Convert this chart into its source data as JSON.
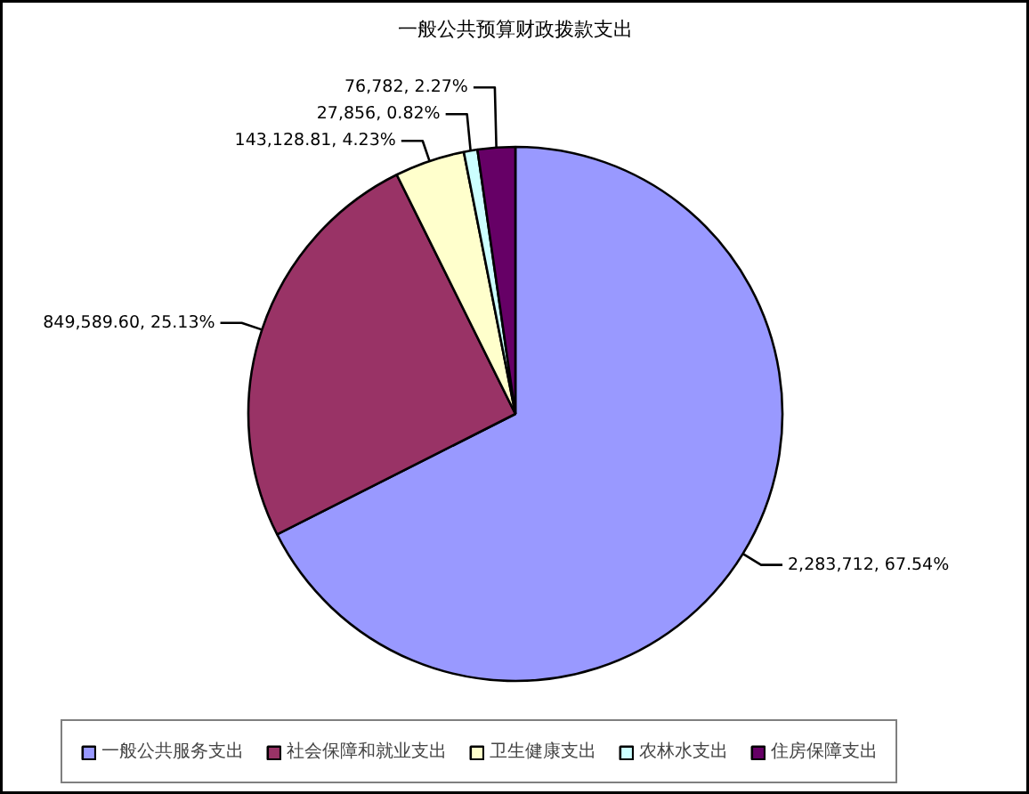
{
  "chart_data": {
    "type": "pie",
    "title": "一般公共预算财政拨款支出",
    "categories": [
      "一般公共服务支出",
      "社会保障和就业支出",
      "卫生健康支出",
      "农林水支出",
      "住房保障支出"
    ],
    "values": [
      2283712,
      849589.6,
      143128.81,
      27856,
      76782
    ],
    "colors": [
      "#9999ff",
      "#993366",
      "#ffffcc",
      "#ccffff",
      "#660066"
    ],
    "value_labels": [
      "2,283,712, 67.54%",
      "849,589.60, 25.13%",
      "143,128.81, 4.23%",
      "27,856, 0.82%",
      "76,782, 2.27%"
    ],
    "legend": "bottom"
  }
}
